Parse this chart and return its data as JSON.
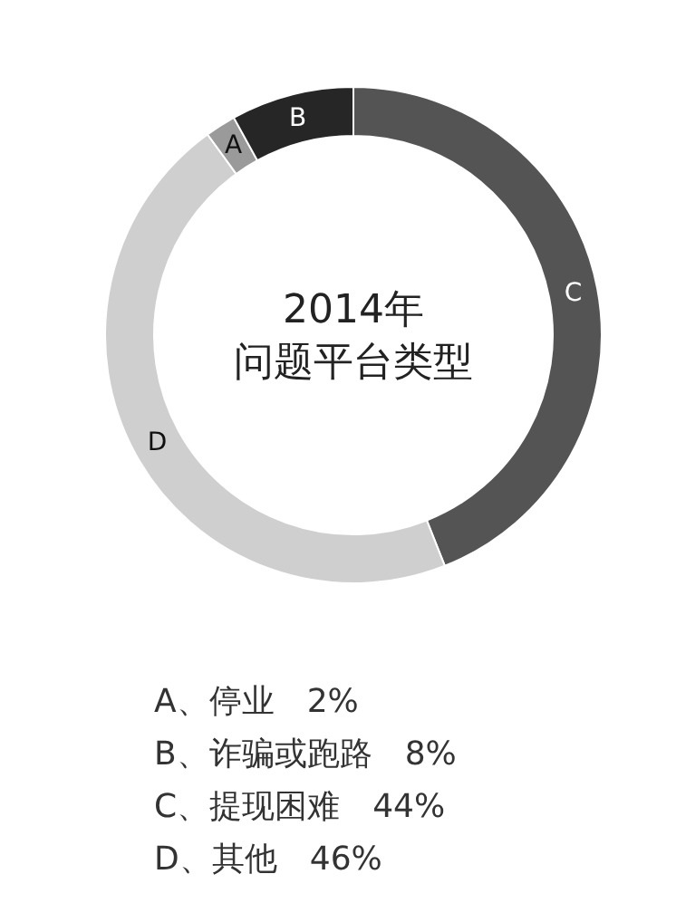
{
  "chart_data": {
    "type": "donut",
    "title": "2014年",
    "subtitle": "问题平台类型",
    "categories": [
      "C",
      "D",
      "A",
      "B"
    ],
    "values": [
      44,
      46,
      2,
      8
    ],
    "colors": [
      "#545454",
      "#cfcfcf",
      "#9a9a9a",
      "#262626"
    ],
    "annotations": [
      "A、停业　2%",
      "B、诈骗或跑路　8%",
      "C、提现困难　44%",
      "D、其他　46%"
    ]
  }
}
